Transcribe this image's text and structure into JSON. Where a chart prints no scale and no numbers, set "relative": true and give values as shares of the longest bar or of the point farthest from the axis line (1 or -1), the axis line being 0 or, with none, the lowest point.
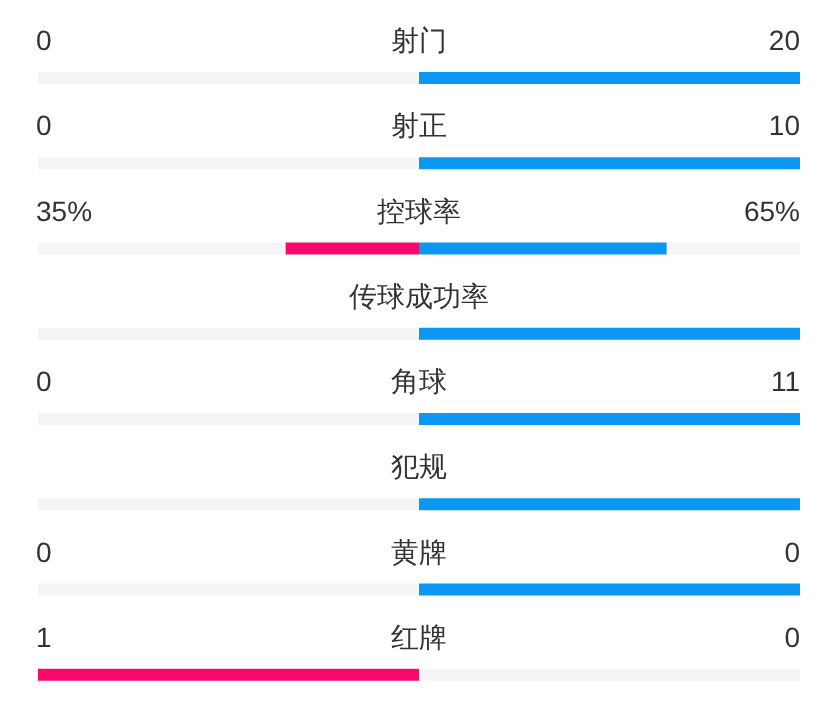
{
  "chart_data": {
    "type": "bar",
    "orientation": "horizontal",
    "relative": true,
    "categories": [
      "射门",
      "射正",
      "控球率",
      "传球成功率",
      "角球",
      "犯规",
      "黄牌",
      "红牌"
    ],
    "series": [
      {
        "color": "#f50a6a",
        "values": [
          0,
          0,
          -0.35,
          0,
          0,
          0,
          0,
          -1
        ]
      },
      {
        "color": "#0a98f2",
        "values": [
          1,
          1,
          0.65,
          1,
          1,
          1,
          1,
          0
        ]
      }
    ],
    "annotations": [
      "0",
      "20",
      "0",
      "10",
      "35%",
      "65%",
      "0",
      "11",
      "0",
      "0",
      "1",
      "0"
    ]
  }
}
